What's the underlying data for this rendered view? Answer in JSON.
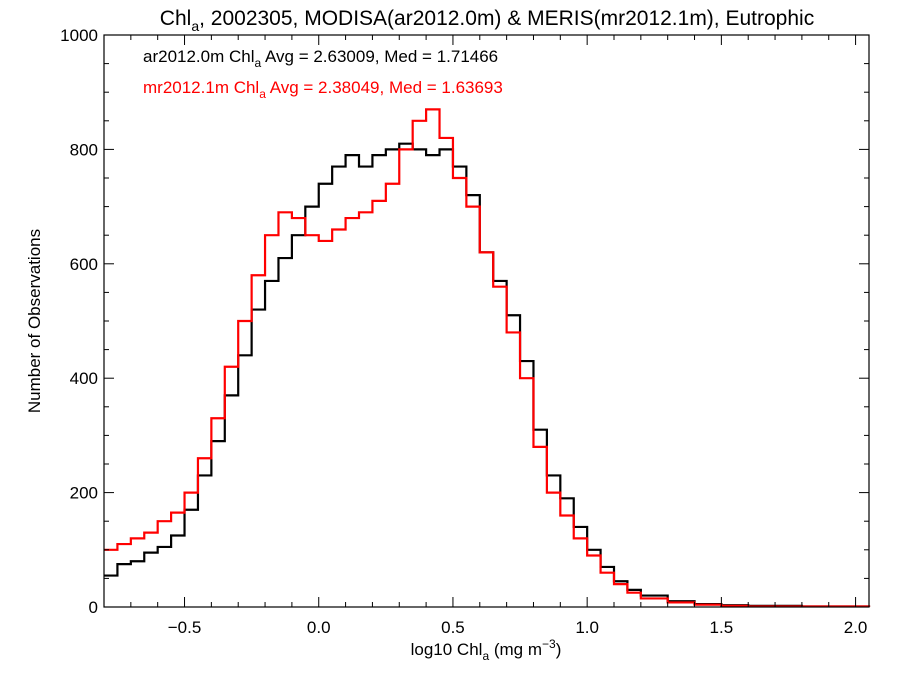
{
  "chart_data": {
    "type": "histogram",
    "title": {
      "parts": [
        {
          "text": "Chl"
        },
        {
          "text": "a",
          "sub": true
        },
        {
          "text": ", 2002305, MODISA(ar2012.0m) & MERIS(mr2012.1m), Eutrophic"
        }
      ]
    },
    "xlabel": {
      "parts": [
        {
          "text": "log10 Chl"
        },
        {
          "text": "a",
          "sub": true
        },
        {
          "text": " (mg m"
        },
        {
          "text": "−3",
          "sup": true
        },
        {
          "text": ")"
        }
      ]
    },
    "ylabel": "Number of Observations",
    "xlim": [
      -0.8,
      2.05
    ],
    "ylim": [
      0,
      1000
    ],
    "x_ticks": [
      -0.5,
      0.0,
      0.5,
      1.0,
      1.5,
      2.0
    ],
    "x_tick_labels": [
      "−0.5",
      "0.0",
      "0.5",
      "1.0",
      "1.5",
      "2.0"
    ],
    "y_ticks": [
      0,
      200,
      400,
      600,
      800,
      1000
    ],
    "y_tick_labels": [
      "0",
      "200",
      "400",
      "600",
      "800",
      "1000"
    ],
    "x_minor_step": 0.1,
    "y_minor_step": 50,
    "series": [
      {
        "name": "ar2012.0m",
        "color": "#000000",
        "legend_parts": [
          {
            "text": "ar2012.0m Chl"
          },
          {
            "text": "a",
            "sub": true
          },
          {
            "text": " Avg = 2.63009, Med = 1.71466"
          }
        ],
        "points": [
          [
            -0.8,
            55
          ],
          [
            -0.75,
            75
          ],
          [
            -0.7,
            80
          ],
          [
            -0.65,
            95
          ],
          [
            -0.6,
            105
          ],
          [
            -0.55,
            125
          ],
          [
            -0.5,
            170
          ],
          [
            -0.45,
            230
          ],
          [
            -0.4,
            290
          ],
          [
            -0.35,
            370
          ],
          [
            -0.3,
            440
          ],
          [
            -0.25,
            520
          ],
          [
            -0.2,
            570
          ],
          [
            -0.15,
            610
          ],
          [
            -0.1,
            650
          ],
          [
            -0.05,
            700
          ],
          [
            0.0,
            740
          ],
          [
            0.05,
            770
          ],
          [
            0.1,
            790
          ],
          [
            0.15,
            770
          ],
          [
            0.2,
            790
          ],
          [
            0.25,
            800
          ],
          [
            0.3,
            810
          ],
          [
            0.35,
            800
          ],
          [
            0.4,
            790
          ],
          [
            0.45,
            800
          ],
          [
            0.5,
            770
          ],
          [
            0.55,
            720
          ],
          [
            0.6,
            620
          ],
          [
            0.65,
            570
          ],
          [
            0.7,
            510
          ],
          [
            0.75,
            430
          ],
          [
            0.8,
            310
          ],
          [
            0.85,
            230
          ],
          [
            0.9,
            190
          ],
          [
            0.95,
            140
          ],
          [
            1.0,
            100
          ],
          [
            1.05,
            70
          ],
          [
            1.1,
            45
          ],
          [
            1.15,
            30
          ],
          [
            1.2,
            20
          ],
          [
            1.3,
            10
          ],
          [
            1.4,
            5
          ],
          [
            1.5,
            3
          ],
          [
            1.6,
            2
          ],
          [
            1.8,
            1
          ],
          [
            2.05,
            0
          ]
        ]
      },
      {
        "name": "mr2012.1m",
        "color": "#ff0000",
        "legend_parts": [
          {
            "text": "mr2012.1m Chl"
          },
          {
            "text": "a",
            "sub": true
          },
          {
            "text": " Avg = 2.38049, Med = 1.63693"
          }
        ],
        "points": [
          [
            -0.8,
            100
          ],
          [
            -0.75,
            110
          ],
          [
            -0.7,
            120
          ],
          [
            -0.65,
            130
          ],
          [
            -0.6,
            150
          ],
          [
            -0.55,
            165
          ],
          [
            -0.5,
            200
          ],
          [
            -0.45,
            260
          ],
          [
            -0.4,
            330
          ],
          [
            -0.35,
            420
          ],
          [
            -0.3,
            500
          ],
          [
            -0.25,
            580
          ],
          [
            -0.2,
            650
          ],
          [
            -0.15,
            690
          ],
          [
            -0.1,
            680
          ],
          [
            -0.05,
            650
          ],
          [
            0.0,
            640
          ],
          [
            0.05,
            660
          ],
          [
            0.1,
            680
          ],
          [
            0.15,
            690
          ],
          [
            0.2,
            710
          ],
          [
            0.25,
            740
          ],
          [
            0.3,
            800
          ],
          [
            0.35,
            850
          ],
          [
            0.4,
            870
          ],
          [
            0.45,
            820
          ],
          [
            0.5,
            750
          ],
          [
            0.55,
            700
          ],
          [
            0.6,
            620
          ],
          [
            0.65,
            560
          ],
          [
            0.7,
            480
          ],
          [
            0.75,
            400
          ],
          [
            0.8,
            280
          ],
          [
            0.85,
            200
          ],
          [
            0.9,
            160
          ],
          [
            0.95,
            120
          ],
          [
            1.0,
            90
          ],
          [
            1.05,
            60
          ],
          [
            1.1,
            40
          ],
          [
            1.15,
            25
          ],
          [
            1.2,
            15
          ],
          [
            1.3,
            8
          ],
          [
            1.4,
            4
          ],
          [
            1.5,
            2
          ],
          [
            1.6,
            1
          ],
          [
            1.8,
            1
          ],
          [
            2.05,
            0
          ]
        ]
      }
    ]
  }
}
